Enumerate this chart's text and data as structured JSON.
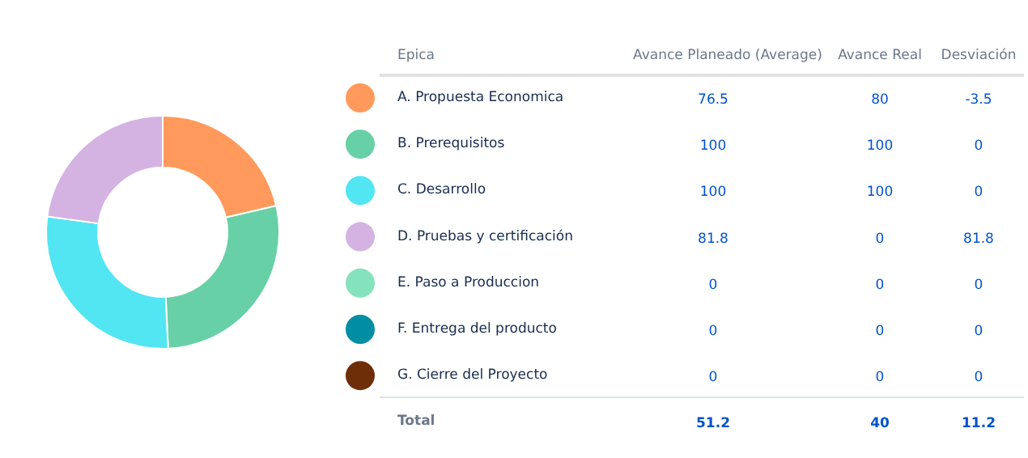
{
  "chart_data": [
    {
      "type": "donut",
      "colors": [
        "#ff9a5c",
        "#67d0a6",
        "#52e5f2",
        "#d4b2e2",
        "#84e2bd",
        "#008ea4",
        "#6e2e08"
      ],
      "values": [
        21.35,
        27.91,
        27.91,
        22.83,
        0,
        0,
        0
      ]
    },
    {
      "type": "other",
      "legend_title": "Epica",
      "categories": [
        "A. Propuesta Economica",
        "B. Prerequisitos",
        "C. Desarrollo",
        "D. Pruebas y certificación",
        "E. Paso a Produccion",
        "F. Entrega del producto",
        "G. Cierre del Proyecto"
      ],
      "series": [
        {
          "name": "Avance Planeado (Average)",
          "values": [
            76.5,
            100,
            100,
            81.8,
            0,
            0,
            0
          ]
        },
        {
          "name": "Avance Real",
          "values": [
            80,
            100,
            100,
            0,
            0,
            0,
            0
          ]
        },
        {
          "name": "Desviación",
          "values": [
            -3.5,
            0,
            0,
            81.8,
            0,
            0,
            0
          ]
        }
      ],
      "data_labels": true,
      "totals": [
        "51.2",
        "40",
        "11.2"
      ],
      "annotations": [
        "Total"
      ]
    }
  ]
}
